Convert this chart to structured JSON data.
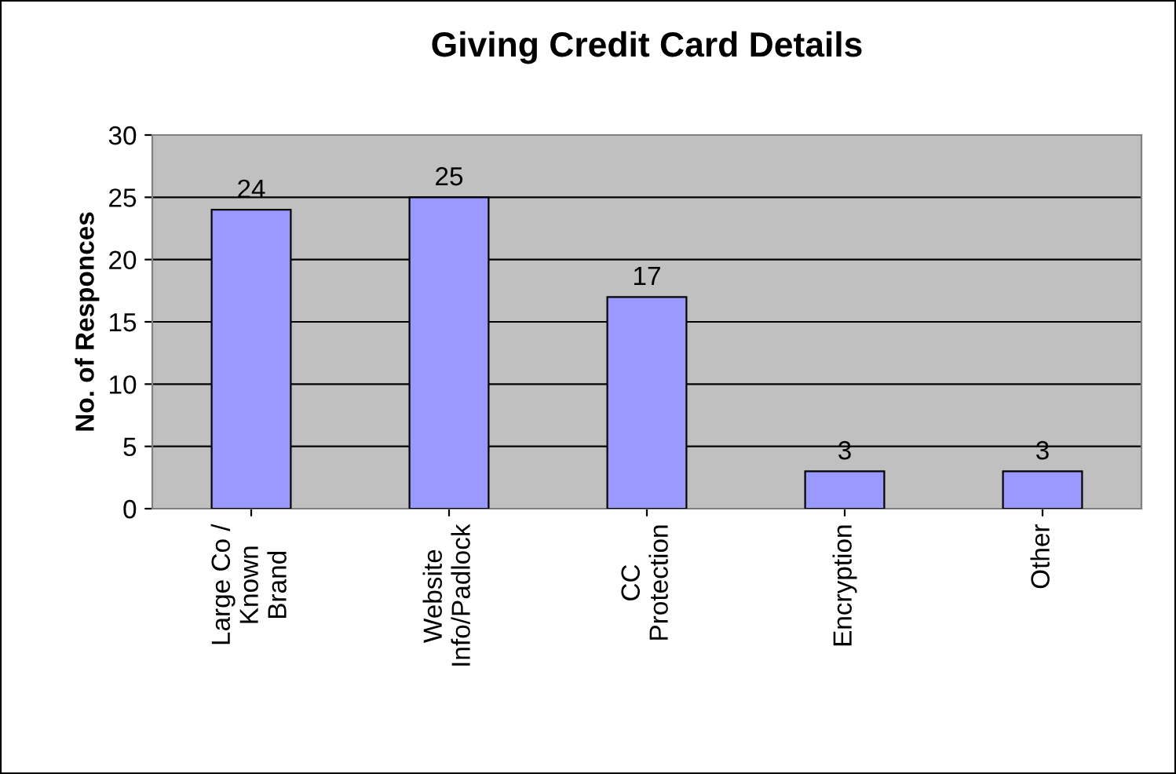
{
  "chart_data": {
    "type": "bar",
    "title": "Giving Credit Card Details",
    "ylabel": "No. of Responces",
    "categories": [
      "Large Co /\nKnown\nBrand",
      "Website\nInfo/Padlock",
      "CC\nProtection",
      "Encryption",
      "Other"
    ],
    "values": [
      24,
      25,
      17,
      3,
      3
    ],
    "color": "#9999ff",
    "ylim": [
      0,
      30
    ],
    "yticks": [
      0,
      5,
      10,
      15,
      20,
      25,
      30
    ],
    "grid": "y",
    "data_labels": true
  }
}
